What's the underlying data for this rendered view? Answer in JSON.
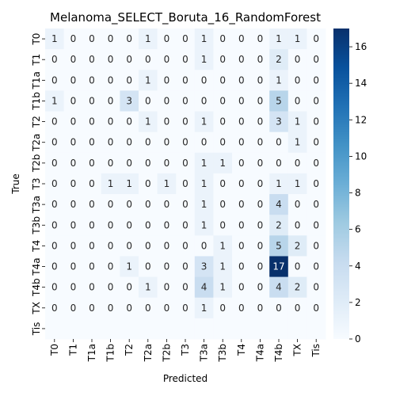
{
  "chart_data": {
    "type": "heatmap",
    "title": "Melanoma_SELECT_Boruta_16_RandomForest",
    "xlabel": "Predicted",
    "ylabel": "True",
    "row_labels": [
      "T0",
      "T1",
      "T1a",
      "T1b",
      "T2",
      "T2a",
      "T2b",
      "T3",
      "T3a",
      "T3b",
      "T4",
      "T4a",
      "T4b",
      "TX",
      "Tis"
    ],
    "col_labels": [
      "T0",
      "T1",
      "T1a",
      "T1b",
      "T2",
      "T2a",
      "T2b",
      "T3",
      "T3a",
      "T3b",
      "T4",
      "T4a",
      "T4b",
      "TX",
      "Tis"
    ],
    "values": [
      [
        1,
        0,
        0,
        0,
        0,
        1,
        0,
        0,
        1,
        0,
        0,
        0,
        1,
        1,
        0
      ],
      [
        0,
        0,
        0,
        0,
        0,
        0,
        0,
        0,
        1,
        0,
        0,
        0,
        2,
        0,
        0
      ],
      [
        0,
        0,
        0,
        0,
        0,
        1,
        0,
        0,
        0,
        0,
        0,
        0,
        1,
        0,
        0
      ],
      [
        1,
        0,
        0,
        0,
        3,
        0,
        0,
        0,
        0,
        0,
        0,
        0,
        5,
        0,
        0
      ],
      [
        0,
        0,
        0,
        0,
        0,
        1,
        0,
        0,
        1,
        0,
        0,
        0,
        3,
        1,
        0
      ],
      [
        0,
        0,
        0,
        0,
        0,
        0,
        0,
        0,
        0,
        0,
        0,
        0,
        0,
        1,
        0
      ],
      [
        0,
        0,
        0,
        0,
        0,
        0,
        0,
        0,
        1,
        1,
        0,
        0,
        0,
        0,
        0
      ],
      [
        0,
        0,
        0,
        1,
        1,
        0,
        1,
        0,
        1,
        0,
        0,
        0,
        1,
        1,
        0
      ],
      [
        0,
        0,
        0,
        0,
        0,
        0,
        0,
        0,
        1,
        0,
        0,
        0,
        4,
        0,
        0
      ],
      [
        0,
        0,
        0,
        0,
        0,
        0,
        0,
        0,
        1,
        0,
        0,
        0,
        2,
        0,
        0
      ],
      [
        0,
        0,
        0,
        0,
        0,
        0,
        0,
        0,
        0,
        1,
        0,
        0,
        5,
        2,
        0
      ],
      [
        0,
        0,
        0,
        0,
        1,
        0,
        0,
        0,
        3,
        1,
        0,
        0,
        17,
        0,
        0
      ],
      [
        0,
        0,
        0,
        0,
        0,
        1,
        0,
        0,
        4,
        1,
        0,
        0,
        4,
        2,
        0
      ],
      [
        0,
        0,
        0,
        0,
        0,
        0,
        0,
        0,
        1,
        0,
        0,
        0,
        0,
        0,
        0
      ],
      [
        0,
        0,
        0,
        0,
        0,
        0,
        0,
        0,
        0,
        0,
        0,
        0,
        0,
        0,
        0
      ]
    ],
    "colorbar": {
      "min": 0,
      "max": 17,
      "ticks": [
        0,
        2,
        4,
        6,
        8,
        10,
        12,
        14,
        16
      ]
    },
    "colormap": "Blues"
  }
}
